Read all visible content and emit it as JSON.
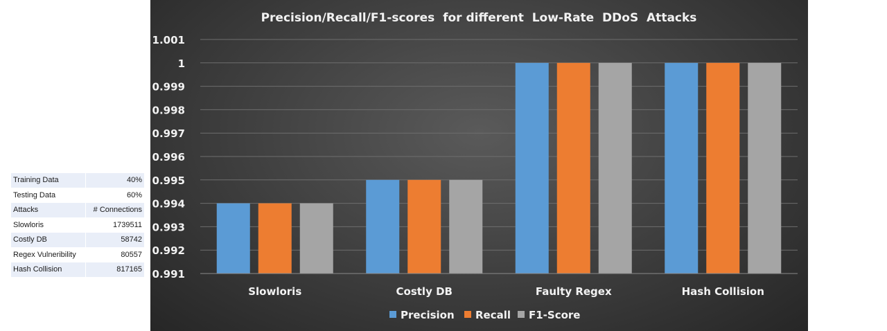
{
  "info_table": {
    "rows": [
      {
        "label": "Training Data",
        "value": "40%"
      },
      {
        "label": "Testing Data",
        "value": "60%"
      },
      {
        "label": "Attacks",
        "value": "# Connections"
      },
      {
        "label": "Slowloris",
        "value": "1739511"
      },
      {
        "label": "Costly DB",
        "value": "58742"
      },
      {
        "label": "Regex Vulneribility",
        "value": "80557"
      },
      {
        "label": "Hash Collision",
        "value": "817165"
      }
    ]
  },
  "chart_data": {
    "type": "bar",
    "title": "Precision/Recall/F1-scores  for different  Low-Rate  DDoS  Attacks",
    "categories": [
      "Slowloris",
      "Costly DB",
      "Faulty Regex",
      "Hash Collision"
    ],
    "series": [
      {
        "name": "Precision",
        "values": [
          0.994,
          0.995,
          1,
          1
        ],
        "color": "#5b9bd5"
      },
      {
        "name": "Recall",
        "values": [
          0.994,
          0.995,
          1,
          1
        ],
        "color": "#ed7d31"
      },
      {
        "name": "F1-Score",
        "values": [
          0.994,
          0.995,
          1,
          1
        ],
        "color": "#a5a5a5"
      }
    ],
    "ylim": [
      0.991,
      1.001
    ],
    "yticks": [
      "0.991",
      "0.992",
      "0.993",
      "0.994",
      "0.995",
      "0.996",
      "0.997",
      "0.998",
      "0.999",
      "1",
      "1.001"
    ],
    "xlabel": "",
    "ylabel": "",
    "grid": true,
    "legend_position": "bottom"
  }
}
